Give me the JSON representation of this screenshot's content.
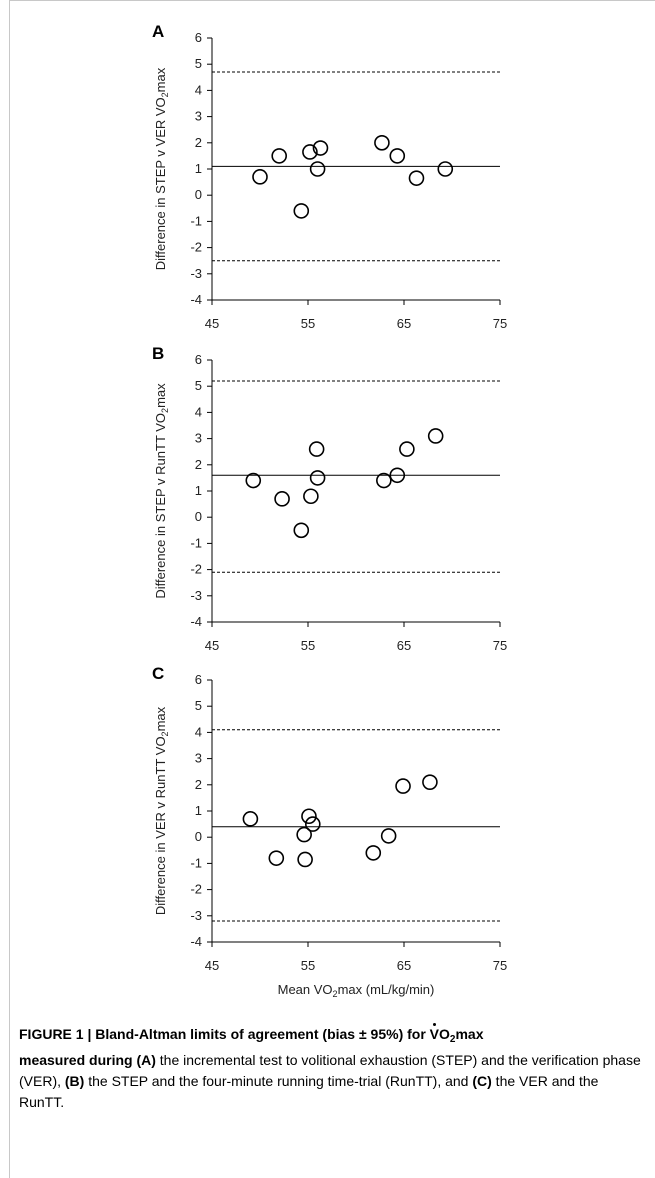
{
  "chart_data": [
    {
      "type": "scatter",
      "panel_label": "A",
      "ylabel": "Difference in STEP v VER VO2max",
      "ylabel_parts": {
        "before": "Difference in STEP v VER VO",
        "sub": "2",
        "after": "max"
      },
      "xlabel": "",
      "xlim": [
        45,
        75
      ],
      "ylim": [
        -4,
        6
      ],
      "x_ticks": [
        "45",
        "55",
        "65",
        "75"
      ],
      "y_ticks": [
        "-4",
        "-3",
        "-2",
        "-1",
        "0",
        "1",
        "2",
        "3",
        "4",
        "5",
        "6"
      ],
      "bias": 1.1,
      "upper_loa": 4.7,
      "lower_loa": -2.5,
      "points": [
        {
          "x": 50,
          "y": 0.7
        },
        {
          "x": 52,
          "y": 1.5
        },
        {
          "x": 54.3,
          "y": -0.6
        },
        {
          "x": 55.2,
          "y": 1.65
        },
        {
          "x": 56.0,
          "y": 1.0
        },
        {
          "x": 56.3,
          "y": 1.8
        },
        {
          "x": 62.7,
          "y": 2.0
        },
        {
          "x": 64.3,
          "y": 1.5
        },
        {
          "x": 66.3,
          "y": 0.65
        },
        {
          "x": 69.3,
          "y": 1.0
        }
      ]
    },
    {
      "type": "scatter",
      "panel_label": "B",
      "ylabel": "Difference in STEP v RunTT VO2max",
      "ylabel_parts": {
        "before": "Difference in STEP v RunTT VO",
        "sub": "2",
        "after": "max"
      },
      "xlabel": "",
      "xlim": [
        45,
        75
      ],
      "ylim": [
        -4,
        6
      ],
      "x_ticks": [
        "45",
        "55",
        "65",
        "75"
      ],
      "y_ticks": [
        "-4",
        "-3",
        "-2",
        "-1",
        "0",
        "1",
        "2",
        "3",
        "4",
        "5",
        "6"
      ],
      "bias": 1.6,
      "upper_loa": 5.2,
      "lower_loa": -2.1,
      "points": [
        {
          "x": 49.3,
          "y": 1.4
        },
        {
          "x": 52.3,
          "y": 0.7
        },
        {
          "x": 54.3,
          "y": -0.5
        },
        {
          "x": 55.3,
          "y": 0.8
        },
        {
          "x": 55.9,
          "y": 2.6
        },
        {
          "x": 56.0,
          "y": 1.5
        },
        {
          "x": 62.9,
          "y": 1.4
        },
        {
          "x": 64.3,
          "y": 1.6
        },
        {
          "x": 65.3,
          "y": 2.6
        },
        {
          "x": 68.3,
          "y": 3.1
        }
      ]
    },
    {
      "type": "scatter",
      "panel_label": "C",
      "ylabel": "Difference in VER v RunTT VO2max",
      "ylabel_parts": {
        "before": "Difference in VER v RunTT VO",
        "sub": "2",
        "after": "max"
      },
      "xlabel": "Mean VO2max (mL/kg/min)",
      "xlabel_parts": {
        "before": "Mean VO",
        "sub": "2",
        "after": "max (mL/kg/min)"
      },
      "xlim": [
        45,
        75
      ],
      "ylim": [
        -4,
        6
      ],
      "x_ticks": [
        "45",
        "55",
        "65",
        "75"
      ],
      "y_ticks": [
        "-4",
        "-3",
        "-2",
        "-1",
        "0",
        "1",
        "2",
        "3",
        "4",
        "5",
        "6"
      ],
      "bias": 0.4,
      "upper_loa": 4.1,
      "lower_loa": -3.2,
      "points": [
        {
          "x": 49.0,
          "y": 0.7
        },
        {
          "x": 51.7,
          "y": -0.8
        },
        {
          "x": 54.6,
          "y": 0.1
        },
        {
          "x": 54.7,
          "y": -0.85
        },
        {
          "x": 55.1,
          "y": 0.8
        },
        {
          "x": 55.5,
          "y": 0.5
        },
        {
          "x": 61.8,
          "y": -0.6
        },
        {
          "x": 63.4,
          "y": 0.05
        },
        {
          "x": 64.9,
          "y": 1.95
        },
        {
          "x": 67.7,
          "y": 2.1
        }
      ]
    }
  ],
  "caption": {
    "figure_label": "FIGURE 1 | Bland-Altman limits of agreement (bias ± 95%) for ",
    "vo2_v": "V",
    "vo2_o": "O",
    "vo2_sub": "2",
    "vo2_max": "max",
    "line1_end": "",
    "ref_a_pre": "measured during ",
    "ref_a": "(A)",
    "text_a": " the incremental test to volitional exhaustion (STEP) and the verification phase (VER), ",
    "ref_b": "(B)",
    "text_b": " the STEP and the four-minute running time-trial (RunTT), and ",
    "ref_c": "(C)",
    "text_c": " the VER and the RunTT."
  }
}
